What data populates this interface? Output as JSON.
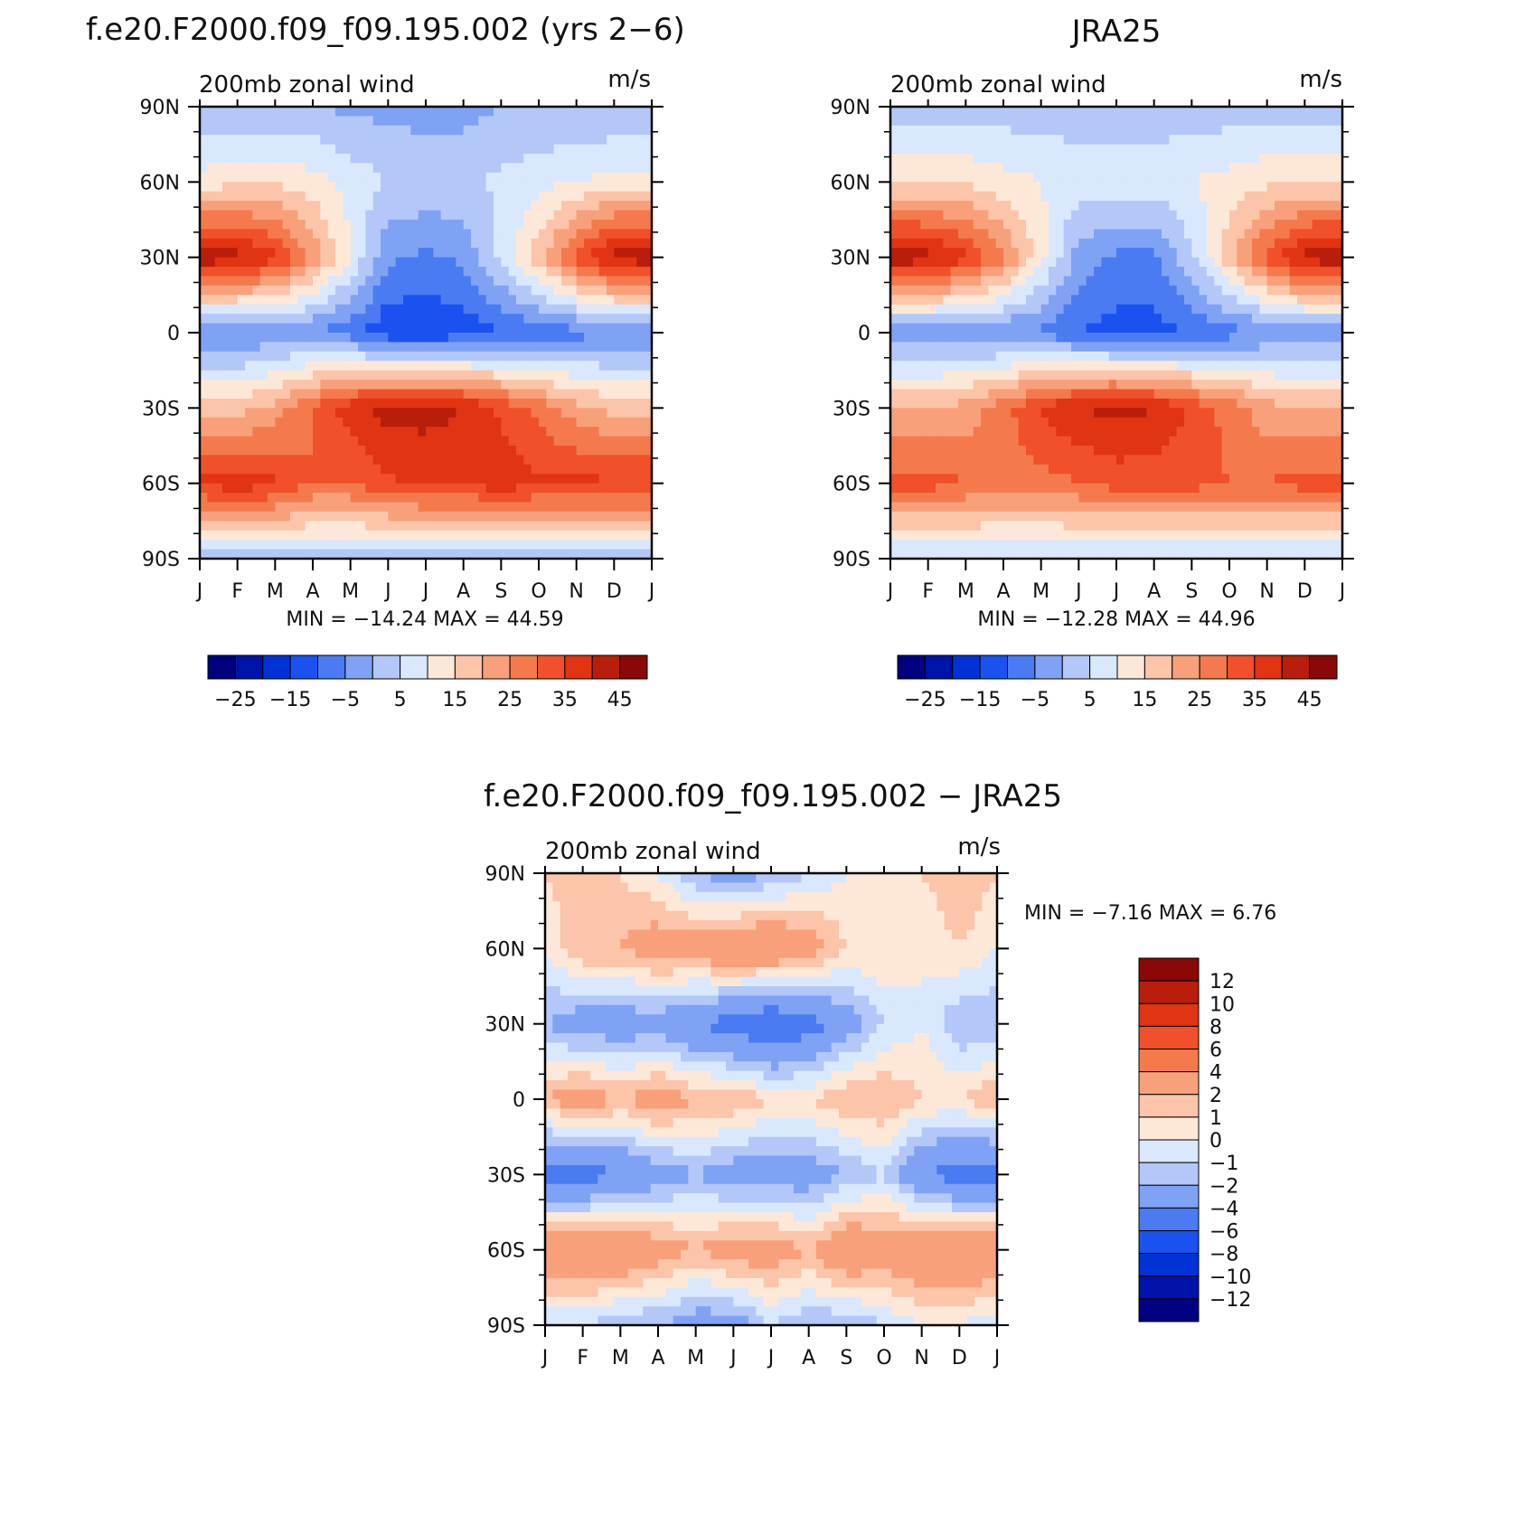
{
  "panels": [
    {
      "title": "f.e20.F2000.f09_f09.195.002 (yrs 2−6)",
      "subtitle_left": "200mb zonal wind",
      "subtitle_right": "m/s",
      "stats": "MIN = −14.24 MAX =   44.59"
    },
    {
      "title": "JRA25",
      "subtitle_left": "200mb zonal wind",
      "subtitle_right": "m/s",
      "stats": "MIN = −12.28 MAX =   44.96"
    },
    {
      "title": "f.e20.F2000.f09_f09.195.002 − JRA25",
      "subtitle_left": "200mb zonal wind",
      "subtitle_right": "m/s",
      "stats": "MIN =   −7.16 MAX =    6.76"
    }
  ],
  "axes": {
    "x_ticks": [
      "J",
      "F",
      "M",
      "A",
      "M",
      "J",
      "J",
      "A",
      "S",
      "O",
      "N",
      "D",
      "J"
    ],
    "y_ticks": [
      "90N",
      "60N",
      "30N",
      "0",
      "30S",
      "60S",
      "90S"
    ]
  },
  "colorbars": {
    "abs": {
      "labels": [
        "−25",
        "−15",
        "−5",
        "5",
        "15",
        "25",
        "35",
        "45"
      ],
      "colors": [
        "#000080",
        "#0013a8",
        "#0033d6",
        "#1a52f0",
        "#4a7bf2",
        "#7fa2f5",
        "#b3c8f8",
        "#d9e8fc",
        "#fde8d8",
        "#fcc4a8",
        "#f8a07a",
        "#f47a4e",
        "#f0502a",
        "#e03412",
        "#b81e0a",
        "#8a0808"
      ]
    },
    "diff": {
      "labels": [
        "12",
        "10",
        "8",
        "6",
        "4",
        "2",
        "1",
        "0",
        "−1",
        "−2",
        "−4",
        "−6",
        "−8",
        "−10",
        "−12"
      ],
      "colors": [
        "#8a0808",
        "#b81e0a",
        "#e03412",
        "#f0502a",
        "#f47a4e",
        "#f8a07a",
        "#fcc4a8",
        "#fde8d8",
        "#d9e8fc",
        "#b3c8f8",
        "#7fa2f5",
        "#4a7bf2",
        "#1a52f0",
        "#0033d6",
        "#0013a8",
        "#000080"
      ]
    }
  },
  "chart_data": [
    {
      "type": "heatmap",
      "title": "f.e20.F2000.f09_f09.195.002 (yrs 2−6)",
      "variable": "200mb zonal wind",
      "units": "m/s",
      "x": [
        "J",
        "F",
        "M",
        "A",
        "M",
        "J",
        "J",
        "A",
        "S",
        "O",
        "N",
        "D",
        "J"
      ],
      "y": [
        "90N",
        "60N",
        "30N",
        "0",
        "30S",
        "60S",
        "90S"
      ],
      "min": -14.24,
      "max": 44.59,
      "contour_levels": [
        -25,
        -20,
        -15,
        -10,
        -5,
        0,
        5,
        10,
        15,
        20,
        25,
        30,
        35,
        40,
        45
      ],
      "values": [
        [
          0,
          0,
          0,
          0,
          -1,
          -2,
          -2,
          -2,
          0,
          0,
          0,
          0,
          0
        ],
        [
          12,
          14,
          14,
          12,
          8,
          5,
          4,
          4,
          6,
          8,
          10,
          12,
          12
        ],
        [
          44,
          42,
          36,
          24,
          10,
          -4,
          -6,
          -4,
          6,
          18,
          32,
          42,
          44
        ],
        [
          -6,
          -6,
          -4,
          -5,
          -8,
          -14,
          -14,
          -13,
          -10,
          -8,
          -7,
          -6,
          -6
        ],
        [
          18,
          18,
          22,
          30,
          38,
          42,
          42,
          40,
          34,
          28,
          22,
          18,
          18
        ],
        [
          36,
          38,
          36,
          30,
          30,
          34,
          36,
          36,
          38,
          36,
          36,
          36,
          36
        ],
        [
          2,
          2,
          2,
          2,
          2,
          2,
          2,
          1,
          0,
          2,
          2,
          2,
          2
        ]
      ]
    },
    {
      "type": "heatmap",
      "title": "JRA25",
      "variable": "200mb zonal wind",
      "units": "m/s",
      "x": [
        "J",
        "F",
        "M",
        "A",
        "M",
        "J",
        "J",
        "A",
        "S",
        "O",
        "N",
        "D",
        "J"
      ],
      "y": [
        "90N",
        "60N",
        "30N",
        "0",
        "30S",
        "60S",
        "90S"
      ],
      "min": -12.28,
      "max": 44.96,
      "contour_levels": [
        -25,
        -20,
        -15,
        -10,
        -5,
        0,
        5,
        10,
        15,
        20,
        25,
        30,
        35,
        40,
        45
      ],
      "values": [
        [
          2,
          2,
          2,
          2,
          2,
          2,
          2,
          2,
          2,
          2,
          2,
          2,
          2
        ],
        [
          14,
          14,
          14,
          12,
          10,
          8,
          8,
          8,
          10,
          12,
          14,
          14,
          14
        ],
        [
          44,
          42,
          36,
          26,
          12,
          -2,
          -6,
          -6,
          4,
          18,
          32,
          42,
          44
        ],
        [
          -4,
          -4,
          -4,
          -5,
          -6,
          -10,
          -12,
          -12,
          -10,
          -7,
          -5,
          -4,
          -4
        ],
        [
          20,
          20,
          22,
          28,
          36,
          40,
          42,
          40,
          34,
          28,
          22,
          20,
          20
        ],
        [
          32,
          32,
          30,
          28,
          28,
          30,
          32,
          32,
          32,
          30,
          30,
          32,
          32
        ],
        [
          4,
          4,
          4,
          4,
          4,
          4,
          4,
          4,
          4,
          4,
          4,
          4,
          4
        ]
      ]
    },
    {
      "type": "heatmap",
      "title": "f.e20.F2000.f09_f09.195.002 − JRA25",
      "variable": "200mb zonal wind",
      "units": "m/s",
      "x": [
        "J",
        "F",
        "M",
        "A",
        "M",
        "J",
        "J",
        "A",
        "S",
        "O",
        "N",
        "D",
        "J"
      ],
      "y": [
        "90N",
        "60N",
        "30N",
        "0",
        "30S",
        "60S",
        "90S"
      ],
      "min": -7.16,
      "max": 6.76,
      "contour_levels": [
        -12,
        -10,
        -8,
        -6,
        -4,
        -2,
        -1,
        0,
        1,
        2,
        4,
        6,
        8,
        10,
        12
      ],
      "values": [
        [
          1,
          2,
          1,
          0,
          -2,
          -3,
          -2,
          -1,
          0,
          0,
          1,
          2,
          1
        ],
        [
          0,
          2,
          2,
          3,
          3,
          4,
          4,
          3,
          1,
          1,
          0,
          1,
          0
        ],
        [
          -2,
          -3,
          -3,
          -3,
          -4,
          -5,
          -6,
          -5,
          -3,
          -1,
          0,
          -2,
          -2
        ],
        [
          2,
          3,
          2,
          3,
          2,
          2,
          1,
          1,
          2,
          2,
          1,
          1,
          2
        ],
        [
          -5,
          -5,
          -4,
          -3,
          -2,
          -3,
          -3,
          -3,
          -2,
          -1,
          -4,
          -5,
          -5
        ],
        [
          4,
          4,
          4,
          3,
          2,
          3,
          3,
          2,
          4,
          3,
          4,
          4,
          4
        ],
        [
          -1,
          -1,
          -2,
          -2,
          -3,
          -3,
          -1,
          -2,
          -2,
          -1,
          0,
          0,
          -1
        ]
      ]
    }
  ]
}
